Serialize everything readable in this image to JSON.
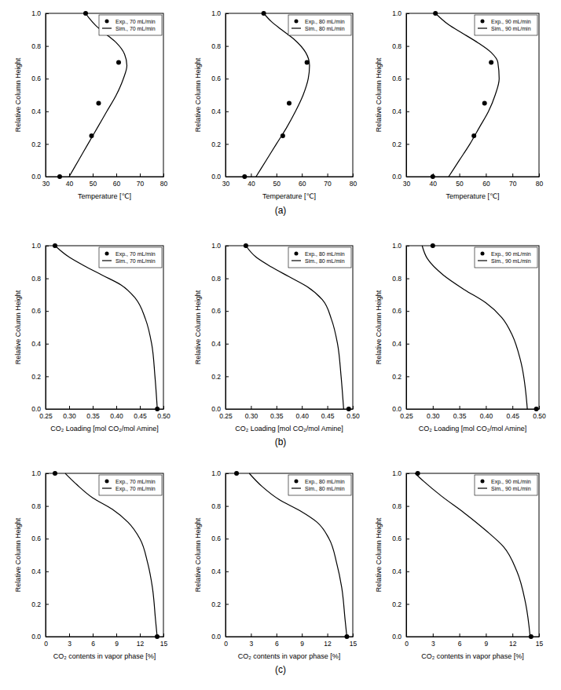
{
  "panel_labels": [
    "(a)",
    "(b)",
    "(c)"
  ],
  "chart_data": [
    {
      "type": "line",
      "xlabel": "Temperature [℃]",
      "ylabel": "Relative Column Height",
      "xlim": [
        30,
        80
      ],
      "ylim": [
        0,
        1
      ],
      "xticks": [
        30,
        40,
        50,
        60,
        70,
        80
      ],
      "yticks": [
        {
          "value": 0,
          "label": "0.0"
        },
        0.2,
        0.4,
        0.6,
        0.8,
        {
          "value": 1,
          "label": "1.0"
        }
      ],
      "legend": "upper right",
      "series": [
        {
          "name": "Exp., 70 mL/min",
          "type": "scatter",
          "marker": "circle",
          "color": "#000000",
          "x": [
            36,
            49.5,
            52.5,
            61,
            47
          ],
          "values": [
            0,
            0.25,
            0.45,
            0.7,
            1.0
          ]
        },
        {
          "name": "Sim., 70 mL/min",
          "type": "line",
          "line_style": "solid",
          "color": "#000000",
          "x": [
            40,
            44,
            48,
            52,
            56,
            60,
            63,
            64.5,
            63.5,
            60,
            55,
            51,
            48.5,
            47
          ],
          "values": [
            0,
            0.1,
            0.2,
            0.3,
            0.4,
            0.5,
            0.6,
            0.68,
            0.75,
            0.82,
            0.88,
            0.93,
            0.97,
            1.0
          ]
        }
      ]
    },
    {
      "type": "line",
      "xlabel": "Temperature [℃]",
      "ylabel": "Relative Column Height",
      "xlim": [
        30,
        80
      ],
      "ylim": [
        0,
        1
      ],
      "xticks": [
        30,
        40,
        50,
        60,
        70,
        80
      ],
      "yticks": [
        {
          "value": 0,
          "label": "0.0"
        },
        0.2,
        0.4,
        0.6,
        0.8,
        {
          "value": 1,
          "label": "1.0"
        }
      ],
      "legend": "upper right",
      "series": [
        {
          "name": "Exp., 80 mL/min",
          "type": "scatter",
          "marker": "circle",
          "color": "#000000",
          "x": [
            37.5,
            52.5,
            55,
            62,
            45
          ],
          "values": [
            0,
            0.25,
            0.45,
            0.7,
            1.0
          ]
        },
        {
          "name": "Sim., 80 mL/min",
          "type": "line",
          "line_style": "solid",
          "color": "#000000",
          "x": [
            42,
            46,
            50,
            54,
            57.5,
            60.5,
            62.5,
            63,
            61.5,
            57,
            52,
            48,
            45
          ],
          "values": [
            0,
            0.1,
            0.2,
            0.3,
            0.4,
            0.5,
            0.6,
            0.68,
            0.76,
            0.84,
            0.9,
            0.95,
            1.0
          ]
        }
      ]
    },
    {
      "type": "line",
      "xlabel": "Temperature [℃]",
      "ylabel": "Relative Column Height",
      "xlim": [
        30,
        80
      ],
      "ylim": [
        0,
        1
      ],
      "xticks": [
        30,
        40,
        50,
        60,
        70,
        80
      ],
      "yticks": [
        {
          "value": 0,
          "label": "0.0"
        },
        0.2,
        0.4,
        0.6,
        0.8,
        {
          "value": 1,
          "label": "1.0"
        }
      ],
      "legend": "upper right",
      "series": [
        {
          "name": "Exp., 90 mL/min",
          "type": "scatter",
          "marker": "circle",
          "color": "#000000",
          "x": [
            40,
            55.5,
            59.5,
            62,
            41
          ],
          "values": [
            0,
            0.25,
            0.45,
            0.7,
            1.0
          ]
        },
        {
          "name": "Sim., 90 mL/min",
          "type": "line",
          "line_style": "solid",
          "color": "#000000",
          "x": [
            46,
            50,
            54,
            57.5,
            61,
            63.5,
            65,
            64.5,
            62,
            57,
            51,
            46,
            43,
            41
          ],
          "values": [
            0,
            0.1,
            0.2,
            0.3,
            0.4,
            0.5,
            0.6,
            0.7,
            0.76,
            0.82,
            0.88,
            0.93,
            0.97,
            1.0
          ]
        }
      ]
    },
    {
      "type": "line",
      "xlabel": "CO₂ Loading [mol CO₂/mol Amine]",
      "ylabel": "Relative Column Height",
      "xlim": [
        0.25,
        0.5
      ],
      "ylim": [
        0,
        1
      ],
      "xticks": [
        0.25,
        {
          "value": 0.3,
          "label": "0.30"
        },
        0.35,
        {
          "value": 0.4,
          "label": "0.40"
        },
        0.45,
        {
          "value": 0.5,
          "label": "0.50"
        }
      ],
      "yticks": [
        {
          "value": 0,
          "label": "0.0"
        },
        0.2,
        0.4,
        0.6,
        0.8,
        {
          "value": 1,
          "label": "1.0"
        }
      ],
      "legend": "upper right",
      "series": [
        {
          "name": "Exp., 70 mL/min",
          "type": "scatter",
          "marker": "circle",
          "color": "#000000",
          "x": [
            0.487,
            0.27
          ],
          "values": [
            0,
            1.0
          ]
        },
        {
          "name": "Sim., 70 mL/min",
          "type": "line",
          "line_style": "solid",
          "color": "#000000",
          "x": [
            0.487,
            0.482,
            0.475,
            0.462,
            0.44,
            0.41,
            0.37,
            0.33,
            0.3,
            0.27
          ],
          "values": [
            0,
            0.2,
            0.4,
            0.55,
            0.68,
            0.76,
            0.82,
            0.88,
            0.93,
            1.0
          ]
        }
      ]
    },
    {
      "type": "line",
      "xlabel": "CO₂ Loading [mol CO₂/mol Amine]",
      "ylabel": "Relative Column Height",
      "xlim": [
        0.25,
        0.5
      ],
      "ylim": [
        0,
        1
      ],
      "xticks": [
        0.25,
        {
          "value": 0.3,
          "label": "0.30"
        },
        0.35,
        {
          "value": 0.4,
          "label": "0.40"
        },
        0.45,
        {
          "value": 0.5,
          "label": "0.50"
        }
      ],
      "yticks": [
        {
          "value": 0,
          "label": "0.0"
        },
        0.2,
        0.4,
        0.6,
        0.8,
        {
          "value": 1,
          "label": "1.0"
        }
      ],
      "legend": "upper right",
      "series": [
        {
          "name": "Exp., 80 mL/min",
          "type": "scatter",
          "marker": "circle",
          "color": "#000000",
          "x": [
            0.492,
            0.29
          ],
          "values": [
            0,
            1.0
          ]
        },
        {
          "name": "Sim., 80 mL/min",
          "type": "line",
          "line_style": "solid",
          "color": "#000000",
          "x": [
            0.482,
            0.477,
            0.47,
            0.458,
            0.44,
            0.41,
            0.375,
            0.34,
            0.31,
            0.29
          ],
          "values": [
            0,
            0.2,
            0.4,
            0.55,
            0.67,
            0.75,
            0.81,
            0.87,
            0.93,
            1.0
          ]
        }
      ]
    },
    {
      "type": "line",
      "xlabel": "CO₂ Loading [mol CO₂/mol Amine]",
      "ylabel": "Relative Column Height",
      "xlim": [
        0.25,
        0.5
      ],
      "ylim": [
        0,
        1
      ],
      "xticks": [
        0.25,
        {
          "value": 0.3,
          "label": "0.30"
        },
        0.35,
        {
          "value": 0.4,
          "label": "0.40"
        },
        0.45,
        {
          "value": 0.5,
          "label": "0.50"
        }
      ],
      "yticks": [
        {
          "value": 0,
          "label": "0.0"
        },
        0.2,
        0.4,
        0.6,
        0.8,
        {
          "value": 1,
          "label": "1.0"
        }
      ],
      "legend": "upper right",
      "series": [
        {
          "name": "Exp., 90 mL/min",
          "type": "scatter",
          "marker": "circle",
          "color": "#000000",
          "x": [
            0.495,
            0.3
          ],
          "values": [
            0,
            1.0
          ]
        },
        {
          "name": "Sim., 90 mL/min",
          "type": "line",
          "line_style": "solid",
          "color": "#000000",
          "x": [
            0.478,
            0.465,
            0.45,
            0.43,
            0.4,
            0.36,
            0.32,
            0.29,
            0.28
          ],
          "values": [
            0,
            0.3,
            0.45,
            0.56,
            0.65,
            0.73,
            0.82,
            0.92,
            1.0
          ]
        }
      ]
    },
    {
      "type": "line",
      "xlabel": "CO₂ contents in vapor phase [%]",
      "ylabel": "Relative Column Height",
      "xlim": [
        0,
        15
      ],
      "ylim": [
        0,
        1
      ],
      "xticks": [
        0,
        3,
        6,
        9,
        12,
        15
      ],
      "yticks": [
        {
          "value": 0,
          "label": "0.0"
        },
        0.2,
        0.4,
        0.6,
        0.8,
        {
          "value": 1,
          "label": "1.0"
        }
      ],
      "legend": "upper right",
      "series": [
        {
          "name": "Exp., 70 mL/min",
          "type": "scatter",
          "marker": "circle",
          "color": "#000000",
          "x": [
            14.2,
            1.2
          ],
          "values": [
            0,
            1.0
          ]
        },
        {
          "name": "Exp., 70 mL/min",
          "type": "line",
          "line_style": "solid",
          "color": "#000000",
          "x": [
            14.2,
            14,
            13.6,
            13,
            12,
            10.5,
            8.5,
            6,
            4,
            2.5
          ],
          "values": [
            0,
            0.1,
            0.3,
            0.45,
            0.6,
            0.7,
            0.78,
            0.85,
            0.93,
            1.0
          ]
        }
      ]
    },
    {
      "type": "line",
      "xlabel": "CO₂ contents in vapor phase [%]",
      "ylabel": "Relative Column Height",
      "xlim": [
        0,
        15
      ],
      "ylim": [
        0,
        1
      ],
      "xticks": [
        0,
        3,
        6,
        9,
        12,
        15
      ],
      "yticks": [
        {
          "value": 0,
          "label": "0.0"
        },
        0.2,
        0.4,
        0.6,
        0.8,
        {
          "value": 1,
          "label": "1.0"
        }
      ],
      "legend": "upper right",
      "series": [
        {
          "name": "Exp., 80 mL/min",
          "type": "scatter",
          "marker": "circle",
          "color": "#000000",
          "x": [
            14.3,
            1.3
          ],
          "values": [
            0,
            1.0
          ]
        },
        {
          "name": "Sim., 80 mL/min",
          "type": "line",
          "line_style": "solid",
          "color": "#000000",
          "x": [
            14.3,
            14.1,
            13.7,
            13.1,
            12.2,
            10.8,
            8.8,
            6.3,
            4.3,
            2.8
          ],
          "values": [
            0,
            0.1,
            0.3,
            0.45,
            0.6,
            0.7,
            0.77,
            0.84,
            0.92,
            1.0
          ]
        }
      ]
    },
    {
      "type": "line",
      "xlabel": "CO₂ contents in vapor phase [%]",
      "ylabel": "Relative Column Height",
      "xlim": [
        0,
        15
      ],
      "ylim": [
        0,
        1
      ],
      "xticks": [
        0,
        3,
        6,
        9,
        12,
        15
      ],
      "yticks": [
        {
          "value": 0,
          "label": "0.0"
        },
        0.2,
        0.4,
        0.6,
        0.8,
        {
          "value": 1,
          "label": "1.0"
        }
      ],
      "legend": "upper right",
      "series": [
        {
          "name": "Exp., 90 mL/min",
          "type": "scatter",
          "marker": "circle",
          "color": "#000000",
          "x": [
            14.1,
            1.3
          ],
          "values": [
            0,
            1.0
          ]
        },
        {
          "name": "Sim., 90 mL/min",
          "type": "line",
          "line_style": "solid",
          "color": "#000000",
          "x": [
            14,
            13.5,
            12.5,
            11,
            9,
            6.5,
            4,
            2,
            1
          ],
          "values": [
            0,
            0.2,
            0.4,
            0.55,
            0.65,
            0.76,
            0.86,
            0.95,
            1.0
          ]
        }
      ]
    }
  ]
}
